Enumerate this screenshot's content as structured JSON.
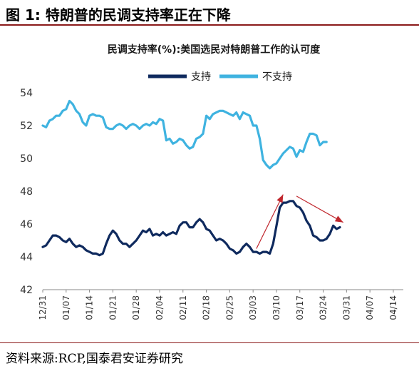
{
  "figure": {
    "title": "图 1:  特朗普的民调支持率正在下降",
    "source": "资料来源:RCP,国泰君安证券研究"
  },
  "colors": {
    "support": "#0f2a5e",
    "oppose": "#3fb3e0",
    "arrow": "#c0272d",
    "rule": "#8b1a1a"
  },
  "chart_data": {
    "type": "line",
    "title": "民调支持率(%):美国选民对特朗普工作的认可度",
    "xlabel": "",
    "ylabel": "",
    "ylim": [
      42,
      54
    ],
    "yticks": [
      42,
      44,
      46,
      48,
      50,
      52,
      54
    ],
    "legend_position": "top-center",
    "grid": false,
    "x_tick_labels": [
      "12/31",
      "01/07",
      "01/14",
      "01/21",
      "01/28",
      "02/04",
      "02/11",
      "02/18",
      "02/25",
      "03/03",
      "03/10",
      "03/17",
      "03/24",
      "03/31",
      "04/07",
      "04/14"
    ],
    "x_days": [
      0,
      7,
      14,
      21,
      28,
      35,
      42,
      49,
      56,
      63,
      70,
      77,
      84,
      91,
      98,
      105
    ],
    "series": [
      {
        "name": "支持",
        "points": [
          [
            0,
            44.6
          ],
          [
            1,
            44.7
          ],
          [
            2,
            45.0
          ],
          [
            3,
            45.3
          ],
          [
            4,
            45.3
          ],
          [
            5,
            45.2
          ],
          [
            6,
            45.0
          ],
          [
            7,
            44.9
          ],
          [
            8,
            45.1
          ],
          [
            9,
            44.8
          ],
          [
            10,
            44.6
          ],
          [
            11,
            44.7
          ],
          [
            12,
            44.6
          ],
          [
            13,
            44.4
          ],
          [
            14,
            44.3
          ],
          [
            15,
            44.2
          ],
          [
            16,
            44.2
          ],
          [
            17,
            44.1
          ],
          [
            18,
            44.2
          ],
          [
            19,
            44.8
          ],
          [
            20,
            45.3
          ],
          [
            21,
            45.6
          ],
          [
            22,
            45.4
          ],
          [
            23,
            45.0
          ],
          [
            24,
            44.8
          ],
          [
            25,
            44.8
          ],
          [
            26,
            44.6
          ],
          [
            27,
            44.8
          ],
          [
            28,
            45.0
          ],
          [
            29,
            45.3
          ],
          [
            30,
            45.6
          ],
          [
            31,
            45.5
          ],
          [
            32,
            45.7
          ],
          [
            33,
            45.3
          ],
          [
            34,
            45.4
          ],
          [
            35,
            45.3
          ],
          [
            36,
            45.5
          ],
          [
            37,
            45.3
          ],
          [
            38,
            45.4
          ],
          [
            39,
            45.5
          ],
          [
            40,
            45.4
          ],
          [
            41,
            45.9
          ],
          [
            42,
            46.1
          ],
          [
            43,
            46.1
          ],
          [
            44,
            45.8
          ],
          [
            45,
            45.8
          ],
          [
            46,
            46.1
          ],
          [
            47,
            46.3
          ],
          [
            48,
            46.1
          ],
          [
            49,
            45.7
          ],
          [
            50,
            45.6
          ],
          [
            51,
            45.3
          ],
          [
            52,
            45.0
          ],
          [
            53,
            45.1
          ],
          [
            54,
            45.0
          ],
          [
            55,
            44.8
          ],
          [
            56,
            44.5
          ],
          [
            57,
            44.4
          ],
          [
            58,
            44.2
          ],
          [
            59,
            44.3
          ],
          [
            60,
            44.6
          ],
          [
            61,
            44.8
          ],
          [
            62,
            44.6
          ],
          [
            63,
            44.3
          ],
          [
            64,
            44.3
          ],
          [
            65,
            44.2
          ],
          [
            66,
            44.3
          ],
          [
            67,
            44.3
          ],
          [
            68,
            44.2
          ],
          [
            69,
            44.8
          ],
          [
            70,
            45.9
          ],
          [
            71,
            47.0
          ],
          [
            72,
            47.3
          ],
          [
            73,
            47.3
          ],
          [
            74,
            47.4
          ],
          [
            75,
            47.4
          ],
          [
            76,
            47.1
          ],
          [
            77,
            47.0
          ],
          [
            78,
            46.7
          ],
          [
            79,
            46.2
          ],
          [
            80,
            45.9
          ],
          [
            81,
            45.3
          ],
          [
            82,
            45.2
          ],
          [
            83,
            45.0
          ],
          [
            84,
            45.0
          ],
          [
            85,
            45.1
          ],
          [
            86,
            45.4
          ],
          [
            87,
            45.9
          ],
          [
            88,
            45.7
          ],
          [
            89,
            45.8
          ]
        ]
      },
      {
        "name": "不支持",
        "points": [
          [
            0,
            52.0
          ],
          [
            1,
            51.9
          ],
          [
            2,
            52.3
          ],
          [
            3,
            52.4
          ],
          [
            4,
            52.6
          ],
          [
            5,
            52.6
          ],
          [
            6,
            52.9
          ],
          [
            7,
            53.0
          ],
          [
            8,
            53.5
          ],
          [
            9,
            53.3
          ],
          [
            10,
            52.9
          ],
          [
            11,
            52.7
          ],
          [
            12,
            52.2
          ],
          [
            13,
            52.0
          ],
          [
            14,
            52.6
          ],
          [
            15,
            52.7
          ],
          [
            16,
            52.6
          ],
          [
            17,
            52.6
          ],
          [
            18,
            52.5
          ],
          [
            19,
            51.9
          ],
          [
            20,
            51.8
          ],
          [
            21,
            51.8
          ],
          [
            22,
            52.0
          ],
          [
            23,
            52.1
          ],
          [
            24,
            52.0
          ],
          [
            25,
            51.8
          ],
          [
            26,
            52.0
          ],
          [
            27,
            52.1
          ],
          [
            28,
            52.0
          ],
          [
            29,
            51.8
          ],
          [
            30,
            52.0
          ],
          [
            31,
            52.1
          ],
          [
            32,
            52.0
          ],
          [
            33,
            52.2
          ],
          [
            34,
            52.1
          ],
          [
            35,
            52.4
          ],
          [
            36,
            52.3
          ],
          [
            37,
            51.1
          ],
          [
            38,
            51.2
          ],
          [
            39,
            50.9
          ],
          [
            40,
            51.0
          ],
          [
            41,
            51.2
          ],
          [
            42,
            51.1
          ],
          [
            43,
            50.8
          ],
          [
            44,
            50.6
          ],
          [
            45,
            50.7
          ],
          [
            46,
            51.2
          ],
          [
            47,
            51.3
          ],
          [
            48,
            51.5
          ],
          [
            49,
            52.6
          ],
          [
            50,
            52.4
          ],
          [
            51,
            52.7
          ],
          [
            52,
            52.8
          ],
          [
            53,
            52.9
          ],
          [
            54,
            52.9
          ],
          [
            55,
            52.8
          ],
          [
            56,
            52.7
          ],
          [
            57,
            52.6
          ],
          [
            58,
            52.8
          ],
          [
            59,
            52.4
          ],
          [
            60,
            52.8
          ],
          [
            61,
            52.7
          ],
          [
            62,
            52.6
          ],
          [
            63,
            52.0
          ],
          [
            64,
            52.0
          ],
          [
            65,
            51.2
          ],
          [
            66,
            49.9
          ],
          [
            67,
            49.6
          ],
          [
            68,
            49.4
          ],
          [
            69,
            49.6
          ],
          [
            70,
            49.7
          ],
          [
            71,
            50.0
          ],
          [
            72,
            50.3
          ],
          [
            73,
            50.5
          ],
          [
            74,
            50.7
          ],
          [
            75,
            50.6
          ],
          [
            76,
            50.1
          ],
          [
            77,
            50.5
          ],
          [
            78,
            50.4
          ],
          [
            79,
            51.0
          ],
          [
            80,
            51.5
          ],
          [
            81,
            51.5
          ],
          [
            82,
            51.4
          ],
          [
            83,
            50.8
          ],
          [
            84,
            51.0
          ],
          [
            85,
            51.0
          ]
        ]
      }
    ],
    "annotations": [
      {
        "type": "arrow",
        "from": [
          64,
          44.5
        ],
        "to": [
          72,
          47.8
        ]
      },
      {
        "type": "arrow",
        "from": [
          76,
          47.7
        ],
        "to": [
          90,
          46.1
        ]
      }
    ]
  }
}
